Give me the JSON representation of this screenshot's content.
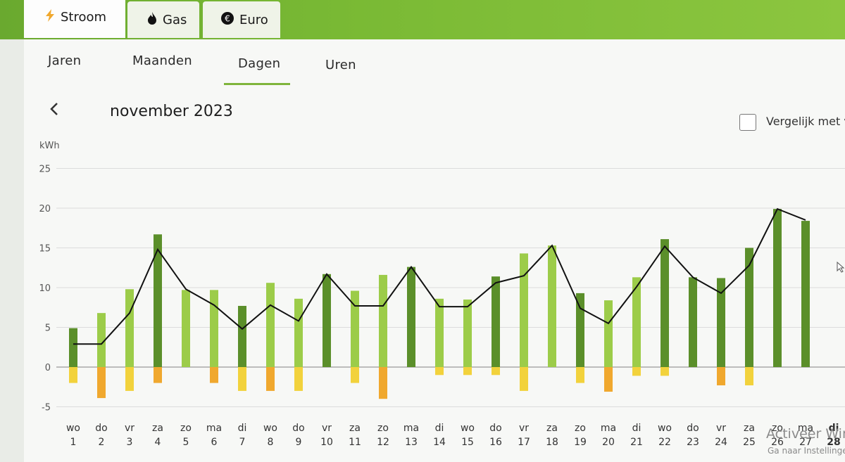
{
  "tabs": [
    {
      "label": "Stroom",
      "icon": "lightning-icon"
    },
    {
      "label": "Gas",
      "icon": "flame-icon"
    },
    {
      "label": "Euro",
      "icon": "euro-icon"
    }
  ],
  "subtabs": [
    "Jaren",
    "Maanden",
    "Dagen",
    "Uren"
  ],
  "active_subtab": "Dagen",
  "period": {
    "back_icon": "chevron-left-icon",
    "title": "november 2023"
  },
  "compare_label": "Vergelijk met vo",
  "watermark": {
    "line1": "Activeer Win",
    "line2": "Ga naar Instellinge"
  },
  "colors": {
    "accent": "#7fb43b",
    "dark_green": "#5b8f2a",
    "light_green": "#9ccc49",
    "orange": "#f0a82e",
    "yellow": "#f2d23c"
  },
  "chart_data": {
    "type": "bar",
    "ylabel": "kWh",
    "ylim": [
      -5,
      25
    ],
    "yticks": [
      25,
      20,
      15,
      10,
      5,
      0,
      -5
    ],
    "grid": true,
    "categories": [
      {
        "day": "wo",
        "date": "1"
      },
      {
        "day": "do",
        "date": "2"
      },
      {
        "day": "vr",
        "date": "3"
      },
      {
        "day": "za",
        "date": "4"
      },
      {
        "day": "zo",
        "date": "5"
      },
      {
        "day": "ma",
        "date": "6"
      },
      {
        "day": "di",
        "date": "7"
      },
      {
        "day": "wo",
        "date": "8"
      },
      {
        "day": "do",
        "date": "9"
      },
      {
        "day": "vr",
        "date": "10"
      },
      {
        "day": "za",
        "date": "11"
      },
      {
        "day": "zo",
        "date": "12"
      },
      {
        "day": "ma",
        "date": "13"
      },
      {
        "day": "di",
        "date": "14"
      },
      {
        "day": "wo",
        "date": "15"
      },
      {
        "day": "do",
        "date": "16"
      },
      {
        "day": "vr",
        "date": "17"
      },
      {
        "day": "za",
        "date": "18"
      },
      {
        "day": "zo",
        "date": "19"
      },
      {
        "day": "ma",
        "date": "20"
      },
      {
        "day": "di",
        "date": "21"
      },
      {
        "day": "wo",
        "date": "22"
      },
      {
        "day": "do",
        "date": "23"
      },
      {
        "day": "vr",
        "date": "24"
      },
      {
        "day": "za",
        "date": "25"
      },
      {
        "day": "zo",
        "date": "26"
      },
      {
        "day": "ma",
        "date": "27"
      },
      {
        "day": "di",
        "date": "28"
      }
    ],
    "series": [
      {
        "values": [
          4.9,
          6.8,
          9.8,
          16.7,
          9.7,
          9.7,
          7.7,
          10.6,
          8.6,
          11.7,
          9.6,
          11.6,
          12.6,
          8.6,
          8.5,
          11.4,
          14.3,
          15.3,
          9.3,
          8.4,
          11.3,
          16.1,
          11.3,
          11.2,
          15.0,
          19.9,
          18.4,
          null
        ]
      },
      {
        "values": [
          -2.0,
          -3.9,
          -3.0,
          -2.0,
          0,
          -2.0,
          -3.0,
          -3.0,
          -3.0,
          0,
          -2.0,
          -4.0,
          0,
          -1.0,
          -1.0,
          -1.0,
          -3.0,
          0,
          -2.0,
          -3.1,
          -1.1,
          -1.1,
          0,
          -2.3,
          -2.3,
          0,
          0,
          null
        ]
      },
      {
        "values": [
          2.9,
          2.9,
          6.8,
          14.8,
          9.8,
          7.8,
          4.8,
          7.8,
          5.8,
          11.7,
          7.7,
          7.7,
          12.6,
          7.6,
          7.6,
          10.6,
          11.5,
          15.3,
          7.4,
          5.5,
          10.1,
          15.2,
          11.3,
          9.3,
          12.8,
          19.9,
          18.5,
          null
        ]
      }
    ]
  }
}
